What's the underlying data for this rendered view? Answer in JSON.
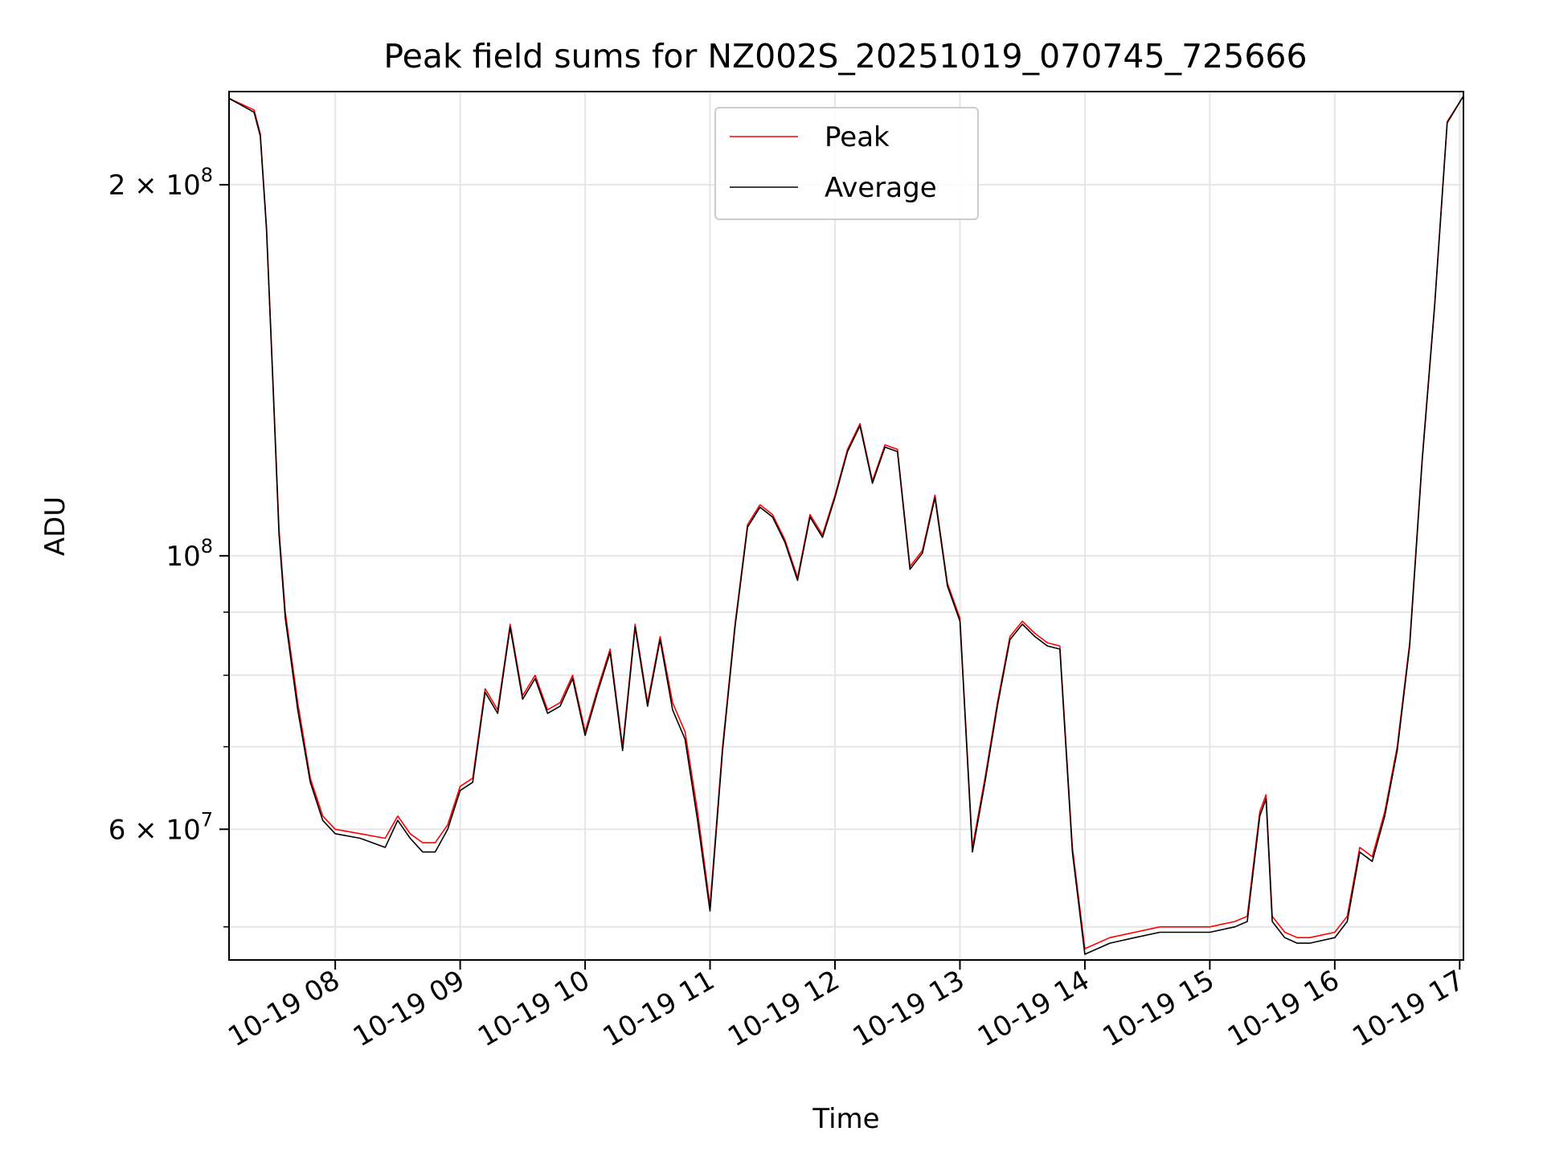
{
  "chart_data": {
    "type": "line",
    "title": "Peak field sums for NZ002S_20251019_070745_725666",
    "xlabel": "Time",
    "ylabel": "ADU",
    "yscale": "log",
    "ylim": [
      47000000,
      238000000
    ],
    "xlim": [
      7.15,
      17.03
    ],
    "grid": true,
    "legend_position": "top-center",
    "x_ticks": [
      {
        "value": 8,
        "label": "10-19 08"
      },
      {
        "value": 9,
        "label": "10-19 09"
      },
      {
        "value": 10,
        "label": "10-19 10"
      },
      {
        "value": 11,
        "label": "10-19 11"
      },
      {
        "value": 12,
        "label": "10-19 12"
      },
      {
        "value": 13,
        "label": "10-19 13"
      },
      {
        "value": 14,
        "label": "10-19 14"
      },
      {
        "value": 15,
        "label": "10-19 15"
      },
      {
        "value": 16,
        "label": "10-19 16"
      },
      {
        "value": 17,
        "label": "10-19 17"
      }
    ],
    "y_ticks": [
      {
        "value": 200000000,
        "mantissa": "2",
        "exponent": "8",
        "mark": "×"
      },
      {
        "value": 100000000,
        "mantissa": "",
        "exponent": "8",
        "mark": ""
      },
      {
        "value": 60000000,
        "mantissa": "6",
        "exponent": "7",
        "mark": "×"
      }
    ],
    "y_tick_base": "10",
    "y_minor_ticks": [
      50000000,
      70000000,
      80000000,
      90000000
    ],
    "series": [
      {
        "name": "Peak",
        "color": "#ff0000",
        "x": [
          7.15,
          7.35,
          7.4,
          7.45,
          7.5,
          7.55,
          7.6,
          7.7,
          7.8,
          7.9,
          8.0,
          8.2,
          8.4,
          8.5,
          8.6,
          8.7,
          8.8,
          8.9,
          9.0,
          9.1,
          9.2,
          9.3,
          9.4,
          9.5,
          9.6,
          9.7,
          9.8,
          9.9,
          10.0,
          10.1,
          10.2,
          10.3,
          10.4,
          10.5,
          10.6,
          10.7,
          10.8,
          10.9,
          11.0,
          11.1,
          11.2,
          11.3,
          11.4,
          11.5,
          11.6,
          11.7,
          11.8,
          11.9,
          12.0,
          12.1,
          12.2,
          12.3,
          12.4,
          12.5,
          12.6,
          12.7,
          12.8,
          12.9,
          13.0,
          13.1,
          13.2,
          13.3,
          13.4,
          13.5,
          13.6,
          13.7,
          13.8,
          13.9,
          14.0,
          14.2,
          14.4,
          14.6,
          14.8,
          15.0,
          15.2,
          15.3,
          15.4,
          15.45,
          15.5,
          15.6,
          15.7,
          15.8,
          16.0,
          16.1,
          16.2,
          16.3,
          16.4,
          16.5,
          16.6,
          16.7,
          16.8,
          16.9,
          17.03
        ],
        "values": [
          235000000,
          230000000,
          220000000,
          185000000,
          140000000,
          105000000,
          90000000,
          76000000,
          66000000,
          61500000,
          60000000,
          59500000,
          59000000,
          61500000,
          59500000,
          58500000,
          58500000,
          60500000,
          65000000,
          66000000,
          78000000,
          75000000,
          88000000,
          77000000,
          80000000,
          75000000,
          76000000,
          80000000,
          72000000,
          78000000,
          84000000,
          70000000,
          88000000,
          76000000,
          86000000,
          76000000,
          72000000,
          62000000,
          52000000,
          70000000,
          88000000,
          106000000,
          110000000,
          108000000,
          103000000,
          96000000,
          108000000,
          104000000,
          112000000,
          122000000,
          128000000,
          115000000,
          123000000,
          122000000,
          98000000,
          101000000,
          112000000,
          95000000,
          89000000,
          58000000,
          66000000,
          76000000,
          86000000,
          88500000,
          86500000,
          85000000,
          84500000,
          58000000,
          48000000,
          49000000,
          49500000,
          50000000,
          50000000,
          50000000,
          50500000,
          51000000,
          62000000,
          64000000,
          51000000,
          49500000,
          49000000,
          49000000,
          49500000,
          51000000,
          58000000,
          57000000,
          62000000,
          70000000,
          85000000,
          120000000,
          160000000,
          225000000,
          236000000
        ]
      },
      {
        "name": "Average",
        "color": "#000000",
        "x": [
          7.15,
          7.35,
          7.4,
          7.45,
          7.5,
          7.55,
          7.6,
          7.7,
          7.8,
          7.9,
          8.0,
          8.2,
          8.4,
          8.5,
          8.6,
          8.7,
          8.8,
          8.9,
          9.0,
          9.1,
          9.2,
          9.3,
          9.4,
          9.5,
          9.6,
          9.7,
          9.8,
          9.9,
          10.0,
          10.1,
          10.2,
          10.3,
          10.4,
          10.5,
          10.6,
          10.7,
          10.8,
          10.9,
          11.0,
          11.1,
          11.2,
          11.3,
          11.4,
          11.5,
          11.6,
          11.7,
          11.8,
          11.9,
          12.0,
          12.1,
          12.2,
          12.3,
          12.4,
          12.5,
          12.6,
          12.7,
          12.8,
          12.9,
          13.0,
          13.1,
          13.2,
          13.3,
          13.4,
          13.5,
          13.6,
          13.7,
          13.8,
          13.9,
          14.0,
          14.2,
          14.4,
          14.6,
          14.8,
          15.0,
          15.2,
          15.3,
          15.4,
          15.45,
          15.5,
          15.6,
          15.7,
          15.8,
          16.0,
          16.1,
          16.2,
          16.3,
          16.4,
          16.5,
          16.6,
          16.7,
          16.8,
          16.9,
          17.03
        ],
        "values": [
          235000000,
          229000000,
          219000000,
          184000000,
          139000000,
          104000000,
          89000000,
          75000000,
          65500000,
          61000000,
          59500000,
          59000000,
          58000000,
          61000000,
          59000000,
          57500000,
          57500000,
          60000000,
          64500000,
          65500000,
          77500000,
          74500000,
          87500000,
          76500000,
          79500000,
          74500000,
          75500000,
          79500000,
          71500000,
          77500000,
          83500000,
          69500000,
          87500000,
          75500000,
          85500000,
          75000000,
          71000000,
          61000000,
          51500000,
          69500000,
          87500000,
          105500000,
          109500000,
          107500000,
          102500000,
          95500000,
          107500000,
          103500000,
          111500000,
          121500000,
          127500000,
          114500000,
          122500000,
          121500000,
          97500000,
          100500000,
          111500000,
          94500000,
          88500000,
          57500000,
          65500000,
          75500000,
          85500000,
          88000000,
          86000000,
          84500000,
          84000000,
          57500000,
          47500000,
          48500000,
          49000000,
          49500000,
          49500000,
          49500000,
          50000000,
          50500000,
          61500000,
          63500000,
          50500000,
          49000000,
          48500000,
          48500000,
          49000000,
          50500000,
          57500000,
          56500000,
          61500000,
          69500000,
          84500000,
          119500000,
          159500000,
          224500000,
          236000000
        ]
      }
    ]
  }
}
